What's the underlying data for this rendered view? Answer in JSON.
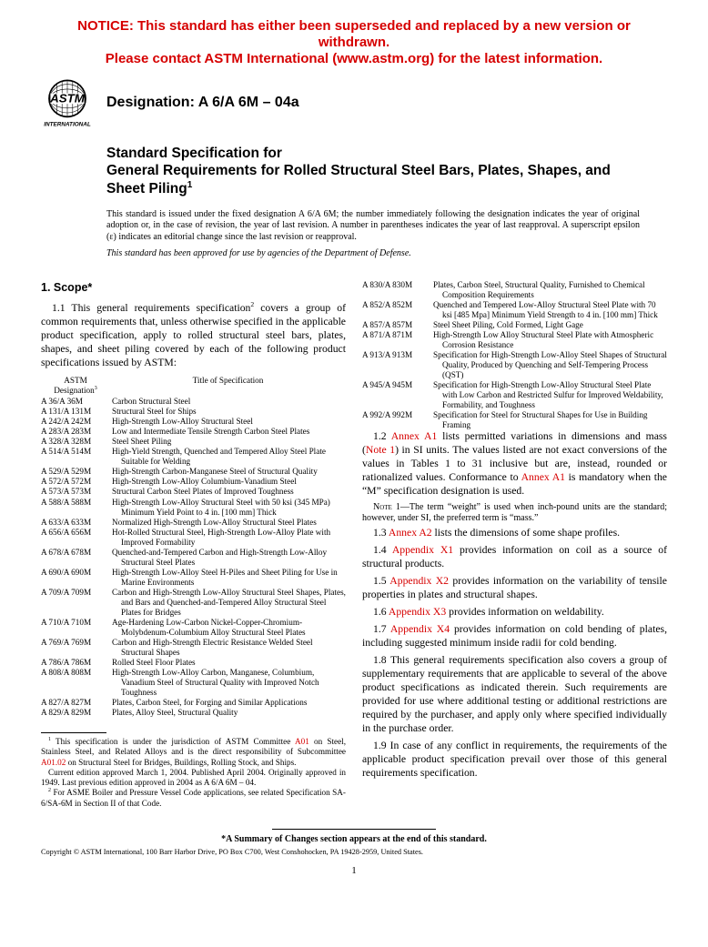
{
  "notice": {
    "line1": "NOTICE: This standard has either been superseded and replaced by a new version or withdrawn.",
    "line2": "Please contact ASTM International (www.astm.org) for the latest information."
  },
  "designation_label": "Designation: A 6/A 6M – 04a",
  "title_over": "Standard Specification for",
  "title_main": "General Requirements for Rolled Structural Steel Bars, Plates, Shapes, and Sheet Piling",
  "title_sup": "1",
  "issuance1": "This standard is issued under the fixed designation A 6/A 6M; the number immediately following the designation indicates the year of original adoption or, in the case of revision, the year of last revision. A number in parentheses indicates the year of last reapproval. A superscript epsilon (ε) indicates an editorial change since the last revision or reapproval.",
  "issuance2": "This standard has been approved for use by agencies of the Department of Defense.",
  "scope_head": "1. Scope*",
  "para_11_a": "1.1 This general requirements specification",
  "para_11_sup": "2",
  "para_11_b": " covers a group of common requirements that, unless otherwise specified in the applicable product specification, apply to rolled structural steel bars, plates, shapes, and sheet piling covered by each of the following product specifications issued by ASTM:",
  "spec_head_col1a": "ASTM",
  "spec_head_col1b": "Designation",
  "spec_head_col1_sup": "3",
  "spec_head_col2": "Title of Specification",
  "specs_left": [
    {
      "d": "A 36/A 36M",
      "t": "Carbon Structural Steel"
    },
    {
      "d": "A 131/A 131M",
      "t": "Structural Steel for Ships"
    },
    {
      "d": "A 242/A 242M",
      "t": "High-Strength Low-Alloy Structural Steel"
    },
    {
      "d": "A 283/A 283M",
      "t": "Low and Intermediate Tensile Strength Carbon Steel Plates"
    },
    {
      "d": "A 328/A 328M",
      "t": "Steel Sheet Piling"
    },
    {
      "d": "A 514/A 514M",
      "t": "High-Yield Strength, Quenched and Tempered Alloy Steel Plate Suitable for Welding"
    },
    {
      "d": "A 529/A 529M",
      "t": "High-Strength Carbon-Manganese Steel of Structural Quality"
    },
    {
      "d": "A 572/A 572M",
      "t": "High-Strength Low-Alloy Columbium-Vanadium Steel"
    },
    {
      "d": "A 573/A 573M",
      "t": "Structural Carbon Steel Plates of Improved Toughness"
    },
    {
      "d": "A 588/A 588M",
      "t": "High-Strength Low-Alloy Structural Steel with 50 ksi (345 MPa) Minimum Yield Point to 4 in. [100 mm] Thick"
    },
    {
      "d": "A 633/A 633M",
      "t": "Normalized High-Strength Low-Alloy Structural Steel Plates"
    },
    {
      "d": "A 656/A 656M",
      "t": "Hot-Rolled Structural Steel, High-Strength Low-Alloy Plate with Improved Formability"
    },
    {
      "d": "A 678/A 678M",
      "t": "Quenched-and-Tempered Carbon and High-Strength Low-Alloy Structural Steel Plates"
    },
    {
      "d": "A 690/A 690M",
      "t": "High-Strength Low-Alloy Steel H-Piles and Sheet Piling for Use in Marine Environments"
    },
    {
      "d": "A 709/A 709M",
      "t": "Carbon and High-Strength Low-Alloy Structural Steel Shapes, Plates, and Bars and Quenched-and-Tempered Alloy Structural Steel Plates for Bridges"
    },
    {
      "d": "A 710/A 710M",
      "t": "Age-Hardening Low-Carbon Nickel-Copper-Chromium-Molybdenum-Columbium Alloy Structural Steel Plates"
    },
    {
      "d": "A 769/A 769M",
      "t": "Carbon and High-Strength Electric Resistance Welded Steel Structural Shapes"
    },
    {
      "d": "A 786/A 786M",
      "t": "Rolled Steel Floor Plates"
    },
    {
      "d": "A 808/A 808M",
      "t": "High-Strength Low-Alloy Carbon, Manganese, Columbium, Vanadium Steel of Structural Quality with Improved Notch Toughness"
    },
    {
      "d": "A 827/A 827M",
      "t": "Plates, Carbon Steel, for Forging and Similar Applications"
    },
    {
      "d": "A 829/A 829M",
      "t": "Plates, Alloy Steel, Structural Quality"
    }
  ],
  "specs_right": [
    {
      "d": "A 830/A 830M",
      "t": "Plates, Carbon Steel, Structural Quality, Furnished to Chemical Composition Requirements"
    },
    {
      "d": "A 852/A 852M",
      "t": "Quenched and Tempered Low-Alloy Structural Steel Plate with 70 ksi [485 Mpa] Minimum Yield Strength to 4 in. [100 mm] Thick"
    },
    {
      "d": "A 857/A 857M",
      "t": "Steel Sheet Piling, Cold Formed, Light Gage"
    },
    {
      "d": "A 871/A 871M",
      "t": "High-Strength Low Alloy Structural Steel Plate with Atmospheric Corrosion Resistance"
    },
    {
      "d": "A 913/A 913M",
      "t": "Specification for High-Strength Low-Alloy Steel Shapes of Structural Quality, Produced by Quenching and Self-Tempering Process (QST)"
    },
    {
      "d": "A 945/A 945M",
      "t": "Specification for High-Strength Low-Alloy Structural Steel Plate with Low Carbon and Restricted Sulfur for Improved Weldability, Formability, and Toughness"
    },
    {
      "d": "A 992/A 992M",
      "t": "Specification for Steel for Structural Shapes for Use in Building Framing"
    }
  ],
  "para_12_a": "1.2 ",
  "para_12_annexA1": "Annex A1",
  "para_12_b": " lists permitted variations in dimensions and mass (",
  "para_12_note1": "Note 1",
  "para_12_c": ") in SI units. The values listed are not exact conversions of the values in Tables 1 to 31 inclusive but are, instead, rounded or rationalized values. Conformance to ",
  "para_12_annexA1b": "Annex A1",
  "para_12_d": " is mandatory when the “M” specification designation is used.",
  "note1_label": "Note 1—",
  "note1_body": "The term “weight” is used when inch-pound units are the standard; however, under SI, the preferred term is “mass.”",
  "para_13_a": "1.3 ",
  "para_13_link": "Annex A2",
  "para_13_b": " lists the dimensions of some shape profiles.",
  "para_14_a": "1.4 ",
  "para_14_link": "Appendix X1",
  "para_14_b": " provides information on coil as a source of structural products.",
  "para_15_a": "1.5 ",
  "para_15_link": "Appendix X2",
  "para_15_b": " provides information on the variability of tensile properties in plates and structural shapes.",
  "para_16_a": "1.6 ",
  "para_16_link": "Appendix X3",
  "para_16_b": " provides information on weldability.",
  "para_17_a": "1.7 ",
  "para_17_link": "Appendix X4",
  "para_17_b": " provides information on cold bending of plates, including suggested minimum inside radii for cold bending.",
  "para_18": "1.8 This general requirements specification also covers a group of supplementary requirements that are applicable to several of the above product specifications as indicated therein. Such requirements are provided for use where additional testing or additional restrictions are required by the purchaser, and apply only where specified individually in the purchase order.",
  "para_19": "1.9 In case of any conflict in requirements, the requirements of the applicable product specification prevail over those of this general requirements specification.",
  "fn1_a": " This specification is under the jurisdiction of ASTM Committee ",
  "fn1_link1": "A01",
  "fn1_b": " on Steel, Stainless Steel, and Related Alloys and is the direct responsibility of Subcommittee ",
  "fn1_link2": "A01.02",
  "fn1_c": " on Structural Steel for Bridges, Buildings, Rolling Stock, and Ships.",
  "fn1_d": "Current edition approved March 1, 2004. Published April 2004. Originally approved in 1949. Last previous edition approved in 2004 as A 6/A 6M – 04.",
  "fn2": " For ASME Boiler and Pressure Vessel Code applications, see related Specification SA-6/SA-6M in Section II of that Code.",
  "summary": "*A Summary of Changes section appears at the end of this standard.",
  "copyright": "Copyright © ASTM International, 100 Barr Harbor Drive, PO Box C700, West Conshohocken, PA 19428-2959, United States.",
  "page_num": "1",
  "colors": {
    "notice_red": "#d60000",
    "link_red": "#d60000",
    "text": "#000000",
    "bg": "#ffffff"
  }
}
